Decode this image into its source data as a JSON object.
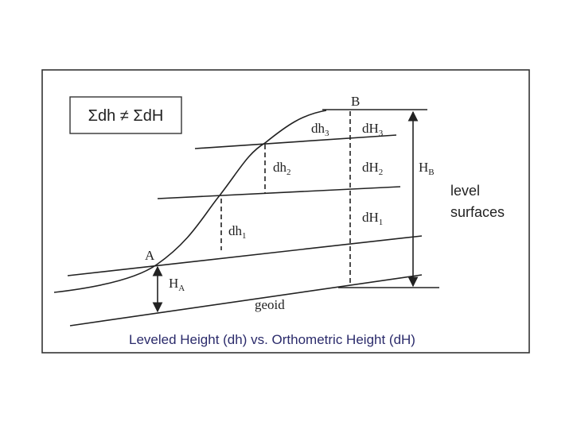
{
  "box_text": "Σdh ≠ ΣdH",
  "points": {
    "A": "A",
    "B": "B"
  },
  "heights": [
    {
      "base": "H",
      "sub": "A"
    },
    {
      "base": "H",
      "sub": "B"
    },
    {
      "base": "dh",
      "sub": "1"
    },
    {
      "base": "dh",
      "sub": "2"
    },
    {
      "base": "dh",
      "sub": "3"
    },
    {
      "base": "dH",
      "sub": "1"
    },
    {
      "base": "dH",
      "sub": "2"
    },
    {
      "base": "dH",
      "sub": "3"
    }
  ],
  "level_surfaces": [
    "level",
    "surfaces"
  ],
  "geoid": "geoid",
  "caption": "Leveled Height (dh) vs. Orthometric Height (dH)"
}
